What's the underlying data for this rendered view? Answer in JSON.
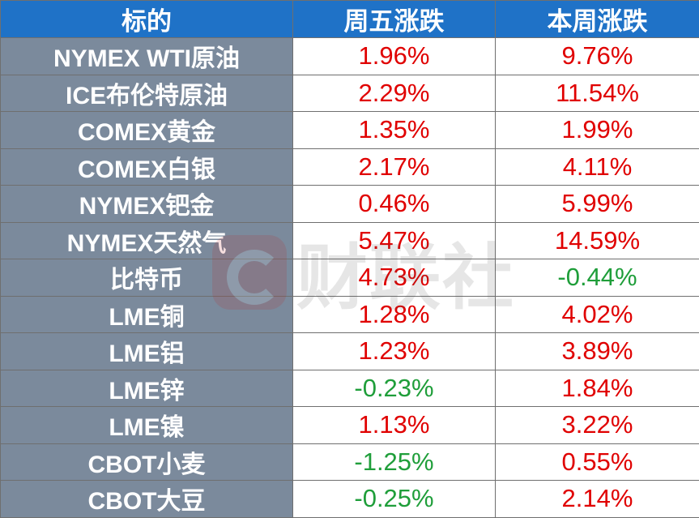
{
  "table": {
    "headers": [
      "标的",
      "周五涨跌",
      "本周涨跌"
    ],
    "rows": [
      {
        "name": "NYMEX WTI原油",
        "fri": "1.96%",
        "week": "9.76%"
      },
      {
        "name": "ICE布伦特原油",
        "fri": "2.29%",
        "week": "11.54%"
      },
      {
        "name": "COMEX黄金",
        "fri": "1.35%",
        "week": "1.99%"
      },
      {
        "name": "COMEX白银",
        "fri": "2.17%",
        "week": "4.11%"
      },
      {
        "name": "NYMEX钯金",
        "fri": "0.46%",
        "week": "5.99%"
      },
      {
        "name": "NYMEX天然气",
        "fri": "5.47%",
        "week": "14.59%"
      },
      {
        "name": "比特币",
        "fri": "4.73%",
        "week": "-0.44%"
      },
      {
        "name": "LME铜",
        "fri": "1.28%",
        "week": "4.02%"
      },
      {
        "name": "LME铝",
        "fri": "1.23%",
        "week": "3.89%"
      },
      {
        "name": "LME锌",
        "fri": "-0.23%",
        "week": "1.84%"
      },
      {
        "name": "LME镍",
        "fri": "1.13%",
        "week": "3.22%"
      },
      {
        "name": "CBOT小麦",
        "fri": "-1.25%",
        "week": "0.55%"
      },
      {
        "name": "CBOT大豆",
        "fri": "-0.25%",
        "week": "2.14%"
      }
    ]
  },
  "colors": {
    "header_bg": "#1f72c7",
    "name_bg": "#7b8a9c",
    "positive": "#e00000",
    "negative": "#1f9e3a"
  },
  "watermark": {
    "text": "财联社",
    "icon": "cls-logo-icon"
  }
}
